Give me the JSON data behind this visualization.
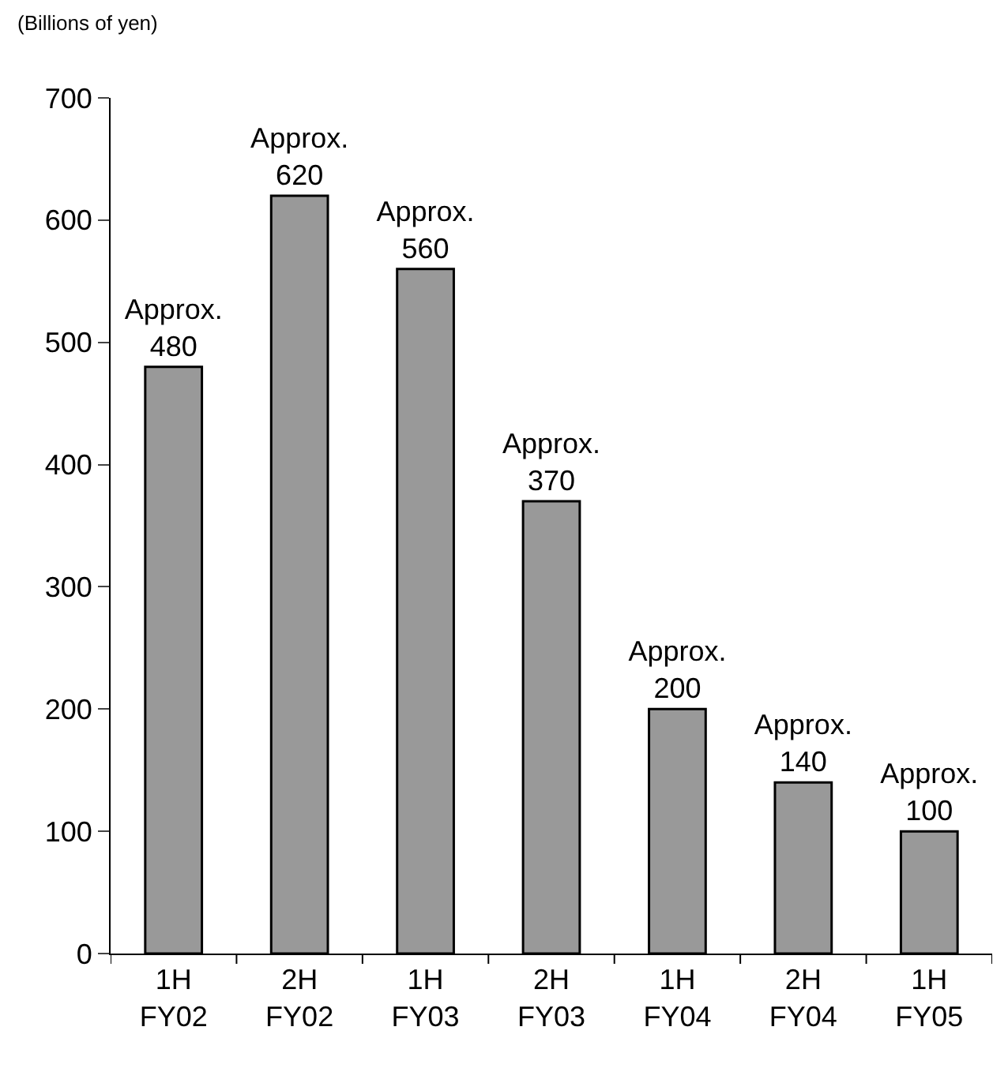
{
  "chart_data": {
    "type": "bar",
    "ylabel": "(Billions of yen)",
    "categories": [
      "1H\nFY02",
      "2H\nFY02",
      "1H\nFY03",
      "2H\nFY03",
      "1H\nFY04",
      "2H\nFY04",
      "1H\nFY05"
    ],
    "values": [
      480,
      620,
      560,
      370,
      200,
      140,
      100
    ],
    "value_labels": [
      "Approx.\n480",
      "Approx.\n620",
      "Approx.\n560",
      "Approx.\n370",
      "Approx.\n200",
      "Approx.\n140",
      "Approx.\n100"
    ],
    "color": "#999999",
    "ylim": [
      0,
      700
    ],
    "yticks": [
      0,
      100,
      200,
      300,
      400,
      500,
      600,
      700
    ]
  }
}
